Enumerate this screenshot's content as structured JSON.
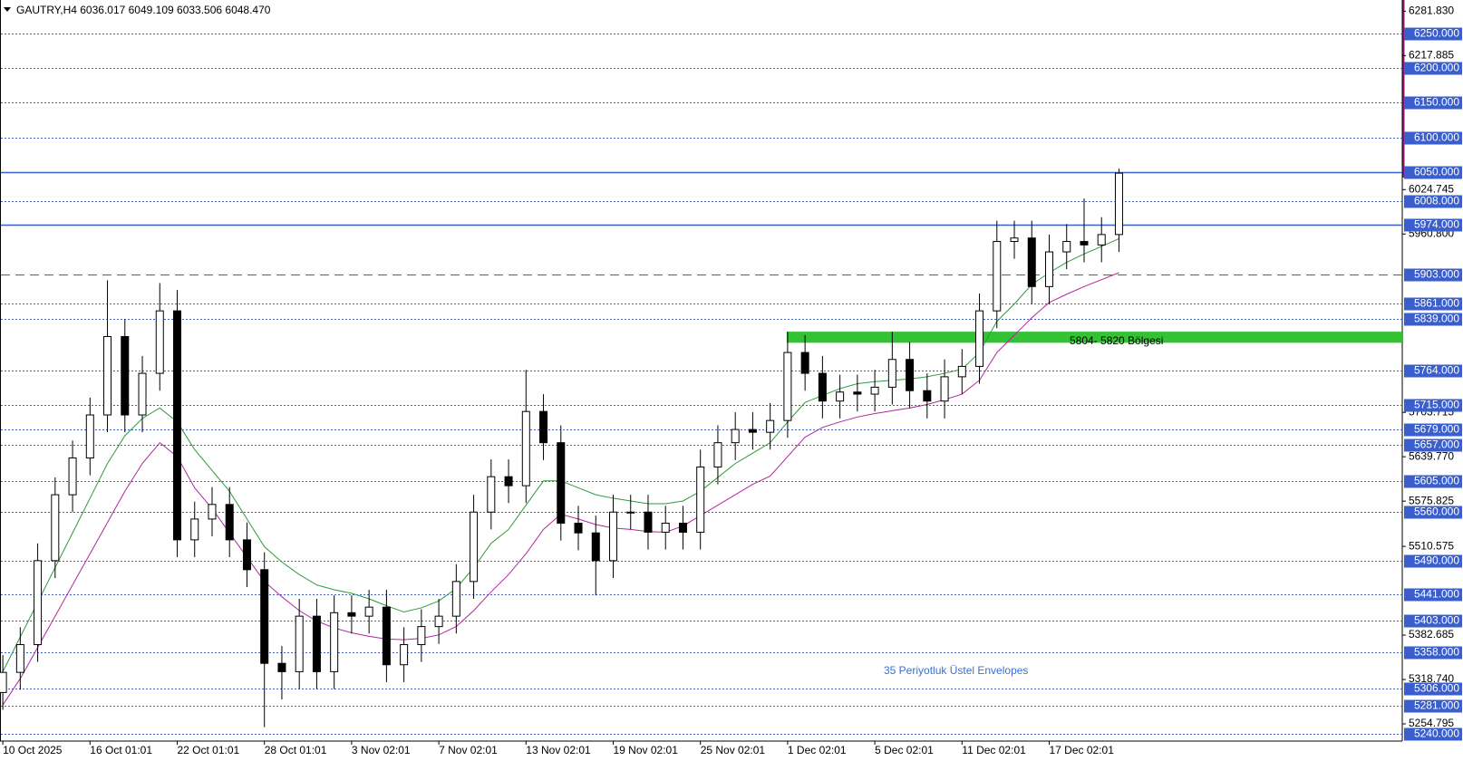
{
  "chart_data": {
    "type": "candlestick",
    "title": "GAUTRY,H4  6036.017 6049.109 6033.506 6048.470",
    "categories": [
      "10 Oct 2025",
      null,
      null,
      null,
      null,
      "16 Oct 01:01",
      null,
      null,
      null,
      null,
      "22 Oct 01:01",
      null,
      null,
      null,
      null,
      "28 Oct 01:01",
      null,
      null,
      null,
      null,
      "3 Nov 02:01",
      null,
      null,
      null,
      null,
      "7 Nov 02:01",
      null,
      null,
      null,
      null,
      "13 Nov 02:01",
      null,
      null,
      null,
      null,
      "19 Nov 02:01",
      null,
      null,
      null,
      null,
      "25 Nov 02:01",
      null,
      null,
      null,
      null,
      "1 Dec 02:01",
      null,
      null,
      null,
      null,
      "5 Dec 02:01",
      null,
      null,
      null,
      null,
      "11 Dec 02:01",
      null,
      null,
      null,
      null,
      "17 Dec 02:01",
      null,
      null,
      null,
      null
    ],
    "open": [
      5300,
      5329,
      5369,
      5490,
      5585,
      5638,
      5700,
      5813,
      5700,
      5760,
      5850,
      5520,
      5550,
      5571,
      5520,
      5477,
      5342,
      5330,
      5410,
      5330,
      5415,
      5410,
      5423,
      5340,
      5369,
      5395,
      5410,
      5460,
      5560,
      5611,
      5598,
      5705,
      5660,
      5544,
      5530,
      5490,
      5560,
      5560,
      5531,
      5544,
      5531,
      5625,
      5660,
      5679,
      5675,
      5692,
      5790,
      5760,
      5720,
      5733,
      5730,
      5740,
      5780,
      5735,
      5720,
      5755,
      5770,
      5850,
      5950,
      5955,
      5885,
      5935,
      5950,
      5945,
      5960
    ],
    "high": [
      5354,
      5394,
      5515,
      5610,
      5663,
      5725,
      5894,
      5838,
      5785,
      5890,
      5880,
      5575,
      5596,
      5596,
      5545,
      5502,
      5367,
      5435,
      5435,
      5440,
      5440,
      5448,
      5448,
      5394,
      5420,
      5435,
      5485,
      5585,
      5636,
      5636,
      5765,
      5730,
      5685,
      5569,
      5555,
      5585,
      5585,
      5585,
      5569,
      5569,
      5650,
      5685,
      5704,
      5704,
      5717,
      5820,
      5815,
      5785,
      5758,
      5758,
      5765,
      5820,
      5805,
      5760,
      5780,
      5795,
      5875,
      5980,
      5980,
      5980,
      5960,
      5975,
      6012,
      5985,
      6055
    ],
    "low": [
      5275,
      5304,
      5344,
      5465,
      5560,
      5613,
      5675,
      5675,
      5675,
      5735,
      5495,
      5495,
      5525,
      5495,
      5452,
      5250,
      5290,
      5305,
      5305,
      5305,
      5385,
      5385,
      5315,
      5315,
      5344,
      5370,
      5385,
      5435,
      5535,
      5573,
      5573,
      5635,
      5519,
      5505,
      5440,
      5465,
      5535,
      5506,
      5506,
      5506,
      5506,
      5600,
      5635,
      5650,
      5650,
      5667,
      5735,
      5695,
      5695,
      5705,
      5705,
      5715,
      5710,
      5695,
      5695,
      5730,
      5745,
      5825,
      5925,
      5860,
      5860,
      5910,
      5920,
      5920,
      5935
    ],
    "close": [
      5329,
      5369,
      5490,
      5585,
      5638,
      5700,
      5813,
      5700,
      5760,
      5850,
      5520,
      5550,
      5571,
      5520,
      5477,
      5342,
      5330,
      5410,
      5330,
      5415,
      5410,
      5423,
      5340,
      5369,
      5395,
      5410,
      5460,
      5560,
      5611,
      5598,
      5705,
      5660,
      5544,
      5530,
      5490,
      5560,
      5560,
      5531,
      5544,
      5531,
      5625,
      5660,
      5679,
      5675,
      5692,
      5790,
      5760,
      5720,
      5733,
      5730,
      5740,
      5780,
      5735,
      5720,
      5755,
      5770,
      5850,
      5950,
      5955,
      5885,
      5935,
      5950,
      5945,
      5960,
      6048.47
    ],
    "candle_colors": {
      "up": "#ffffff",
      "down": "#000000",
      "wick": "#000000"
    },
    "envelopes": [
      {
        "color": "#2e9a3a",
        "values": [
          5330,
          5380,
          5430,
          5480,
          5530,
          5580,
          5630,
          5670,
          5695,
          5710,
          5690,
          5650,
          5620,
          5590,
          5550,
          5510,
          5488,
          5470,
          5455,
          5448,
          5443,
          5435,
          5425,
          5416,
          5422,
          5432,
          5450,
          5480,
          5515,
          5535,
          5570,
          5605,
          5605,
          5595,
          5585,
          5580,
          5576,
          5572,
          5572,
          5576,
          5590,
          5610,
          5630,
          5645,
          5660,
          5690,
          5718,
          5728,
          5738,
          5745,
          5748,
          5750,
          5752,
          5755,
          5760,
          5766,
          5790,
          5835,
          5860,
          5888,
          5905,
          5920,
          5932,
          5943,
          5954
        ]
      },
      {
        "color": "#b0289c",
        "values": [
          5282,
          5320,
          5365,
          5410,
          5455,
          5500,
          5545,
          5590,
          5630,
          5660,
          5640,
          5595,
          5565,
          5530,
          5495,
          5460,
          5438,
          5418,
          5403,
          5393,
          5386,
          5381,
          5377,
          5376,
          5378,
          5383,
          5395,
          5418,
          5445,
          5470,
          5500,
          5535,
          5557,
          5550,
          5542,
          5537,
          5535,
          5532,
          5531,
          5540,
          5555,
          5570,
          5585,
          5600,
          5612,
          5640,
          5668,
          5682,
          5690,
          5697,
          5702,
          5706,
          5710,
          5715,
          5722,
          5730,
          5750,
          5790,
          5815,
          5840,
          5862,
          5874,
          5885,
          5895,
          5905
        ]
      }
    ],
    "ylim": [
      5230,
      6298
    ],
    "yticks": [
      {
        "value": 6281.83,
        "label": "6281.830"
      },
      {
        "value": 6217.885,
        "label": "6217.885"
      },
      {
        "value": 6024.745,
        "label": "6024.745"
      },
      {
        "value": 5960.8,
        "label": "5960.800"
      },
      {
        "value": 5703.715,
        "label": "5703.715"
      },
      {
        "value": 5639.77,
        "label": "5639.770"
      },
      {
        "value": 5575.825,
        "label": "5575.825"
      },
      {
        "value": 5510.575,
        "label": "5510.575"
      },
      {
        "value": 5382.685,
        "label": "5382.685"
      },
      {
        "value": 5318.74,
        "label": "5318.740"
      },
      {
        "value": 5254.795,
        "label": "5254.795"
      }
    ],
    "levels": [
      {
        "value": 6250,
        "label": "6250.000",
        "style": "dotted"
      },
      {
        "value": 6200,
        "label": "6200.000",
        "style": "dotted"
      },
      {
        "value": 6150,
        "label": "6150.000",
        "style": "dotted"
      },
      {
        "value": 6100,
        "label": "6100.000",
        "style": "dotted"
      },
      {
        "value": 6050,
        "label": "6050.000",
        "style": "solid"
      },
      {
        "value": 6008,
        "label": "6008.000",
        "style": "dotted"
      },
      {
        "value": 5974,
        "label": "5974.000",
        "style": "solid"
      },
      {
        "value": 5903,
        "label": "5903.000",
        "style": "dashed"
      },
      {
        "value": 5861,
        "label": "5861.000",
        "style": "dotted"
      },
      {
        "value": 5839,
        "label": "5839.000",
        "style": "dotted"
      },
      {
        "value": 5764,
        "label": "5764.000",
        "style": "dotted"
      },
      {
        "value": 5715,
        "label": "5715.000",
        "style": "dotted"
      },
      {
        "value": 5679,
        "label": "5679.000",
        "style": "dotted"
      },
      {
        "value": 5657,
        "label": "5657.000",
        "style": "dotted"
      },
      {
        "value": 5605,
        "label": "5605.000",
        "style": "dotted"
      },
      {
        "value": 5560,
        "label": "5560.000",
        "style": "dotted"
      },
      {
        "value": 5490,
        "label": "5490.000",
        "style": "dotted"
      },
      {
        "value": 5441,
        "label": "5441.000",
        "style": "dotted"
      },
      {
        "value": 5403,
        "label": "5403.000",
        "style": "dotted"
      },
      {
        "value": 5358,
        "label": "5358.000",
        "style": "dotted"
      },
      {
        "value": 5306,
        "label": "5306.000",
        "style": "dotted"
      },
      {
        "value": 5281,
        "label": "5281.000",
        "style": "dotted"
      },
      {
        "value": 5240,
        "label": "5240.000",
        "style": "dotted"
      }
    ],
    "level_color": "#3a5fcd",
    "zone": {
      "low": 5804,
      "high": 5820,
      "label": "5804- 5820 Bölgesi",
      "color": "#33c233"
    },
    "annotations": [
      {
        "text": "35 Periyotluk Üstel Envelopes",
        "color": "#3a6fd8"
      }
    ]
  }
}
